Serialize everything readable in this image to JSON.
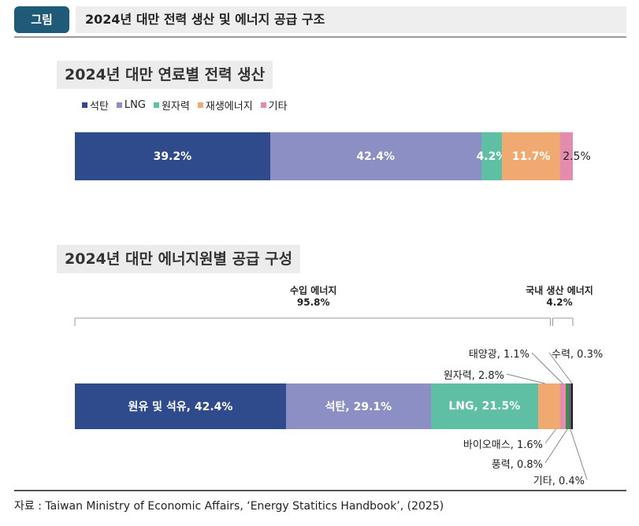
{
  "header": {
    "badge": "그림",
    "title": "2024년 대만 전력 생산 및 에너지 공급 구조"
  },
  "colors": {
    "coal": "#2f4b8b",
    "lng": "#8b8fc4",
    "nuclear": "#5fbfa5",
    "renewable": "#f0a971",
    "other": "#e48bb0",
    "wind": "#3f8a4f",
    "hydro": "#1a1a1a",
    "etc": "#7a4a8a"
  },
  "chart_data": [
    {
      "type": "bar",
      "title": "2024년 대만 연료별 전력 생산",
      "orientation": "horizontal-stacked-100",
      "legend_position": "top-left",
      "series": [
        {
          "name": "석탄",
          "value": 39.2,
          "label": "39.2%"
        },
        {
          "name": "LNG",
          "value": 42.4,
          "label": "42.4%"
        },
        {
          "name": "원자력",
          "value": 4.2,
          "label": "4.2%"
        },
        {
          "name": "재생에너지",
          "value": 11.7,
          "label": "11.7%"
        },
        {
          "name": "기타",
          "value": 2.5,
          "label": "2.5%"
        }
      ]
    },
    {
      "type": "bar",
      "title": "2024년 대만 에너지원별 공급 구성",
      "orientation": "horizontal-stacked-100",
      "groups": [
        {
          "label": "수입 에너지",
          "value_label": "95.8%",
          "value": 95.8
        },
        {
          "label": "국내 생산 에너지",
          "value_label": "4.2%",
          "value": 4.2
        }
      ],
      "series": [
        {
          "name": "원유 및 석유",
          "value": 42.4,
          "label": "원유 및 석유, 42.4%"
        },
        {
          "name": "석탄",
          "value": 29.1,
          "label": "석탄, 29.1%"
        },
        {
          "name": "LNG",
          "value": 21.5,
          "label": "LNG, 21.5%"
        },
        {
          "name": "원자력",
          "value": 2.8,
          "label": "원자력, 2.8%"
        },
        {
          "name": "바이오매스",
          "value": 1.6,
          "label": "바이오매스, 1.6%"
        },
        {
          "name": "태양광",
          "value": 1.1,
          "label": "태양광, 1.1%"
        },
        {
          "name": "풍력",
          "value": 0.8,
          "label": "풍력, 0.8%"
        },
        {
          "name": "기타",
          "value": 0.4,
          "label": "기타, 0.4%"
        },
        {
          "name": "수력",
          "value": 0.3,
          "label": "수력, 0.3%"
        }
      ]
    }
  ],
  "footer": {
    "source": "자료 : Taiwan Ministry of Economic Affairs, ‘Energy Statitics Handbook’, (2025)"
  }
}
